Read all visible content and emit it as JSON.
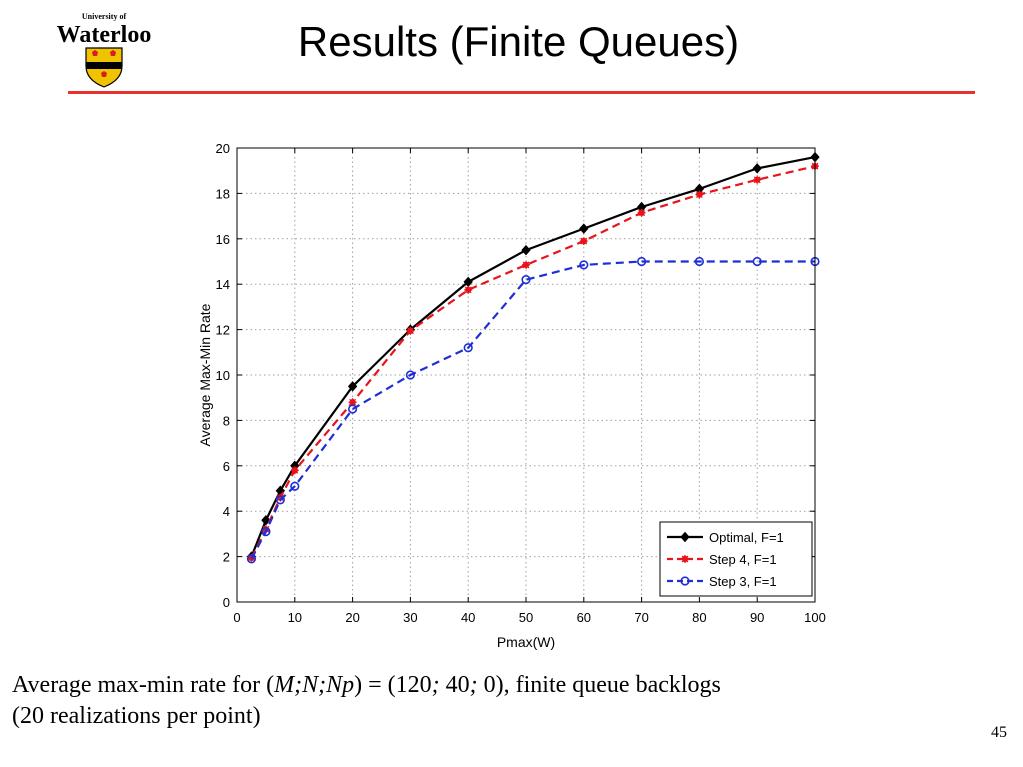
{
  "logo": {
    "top_text": "University of",
    "wordmark": "Waterloo",
    "shield_colors": [
      "#f0c300",
      "#d81e1e",
      "#000000"
    ]
  },
  "slide": {
    "title": "Results (Finite Queues)",
    "accent_color": "#e8302c",
    "page_number": "45"
  },
  "caption": {
    "pre": "Average max-min rate for (",
    "vars": "M;N;Np",
    "mid1": ") = (120",
    "sep1": ";",
    "mid2": " 40",
    "sep2": ";",
    "post": " 0), finite queue backlogs",
    "line2": "(20 realizations per point)"
  },
  "chart_data": {
    "type": "line",
    "xlabel": "Pmax(W)",
    "ylabel": "Average Max-Min Rate",
    "xlim": [
      0,
      100
    ],
    "ylim": [
      0,
      20
    ],
    "xticks": [
      "0",
      "10",
      "20",
      "30",
      "40",
      "50",
      "60",
      "70",
      "80",
      "90",
      "100"
    ],
    "yticks": [
      "0",
      "2",
      "4",
      "6",
      "8",
      "10",
      "12",
      "14",
      "16",
      "18",
      "20"
    ],
    "grid": true,
    "legend_position": "bottom-right",
    "series": [
      {
        "name": "Optimal, F=1",
        "color": "#000000",
        "line": "solid",
        "marker": "diamond",
        "x": [
          2.5,
          5,
          7.5,
          10,
          20,
          30,
          40,
          50,
          60,
          70,
          80,
          90,
          100
        ],
        "y": [
          2.0,
          3.6,
          4.9,
          6.0,
          9.5,
          12.0,
          14.1,
          15.5,
          16.45,
          17.4,
          18.2,
          19.1,
          19.6
        ]
      },
      {
        "name": "Step 4, F=1",
        "color": "#e8141b",
        "line": "dashed",
        "marker": "asterisk",
        "x": [
          2.5,
          5,
          7.5,
          10,
          20,
          30,
          40,
          50,
          60,
          70,
          80,
          90,
          100
        ],
        "y": [
          1.95,
          3.2,
          4.6,
          5.8,
          8.8,
          11.95,
          13.75,
          14.85,
          15.9,
          17.15,
          17.95,
          18.6,
          19.2
        ]
      },
      {
        "name": "Step 3, F=1",
        "color": "#1f2fd6",
        "line": "dashed",
        "marker": "circle",
        "x": [
          2.5,
          5,
          7.5,
          10,
          20,
          30,
          40,
          50,
          60,
          70,
          80,
          90,
          100
        ],
        "y": [
          1.9,
          3.1,
          4.5,
          5.1,
          8.5,
          10.0,
          11.2,
          14.2,
          14.85,
          15.0,
          15.0,
          15.0,
          15.0
        ]
      }
    ]
  }
}
